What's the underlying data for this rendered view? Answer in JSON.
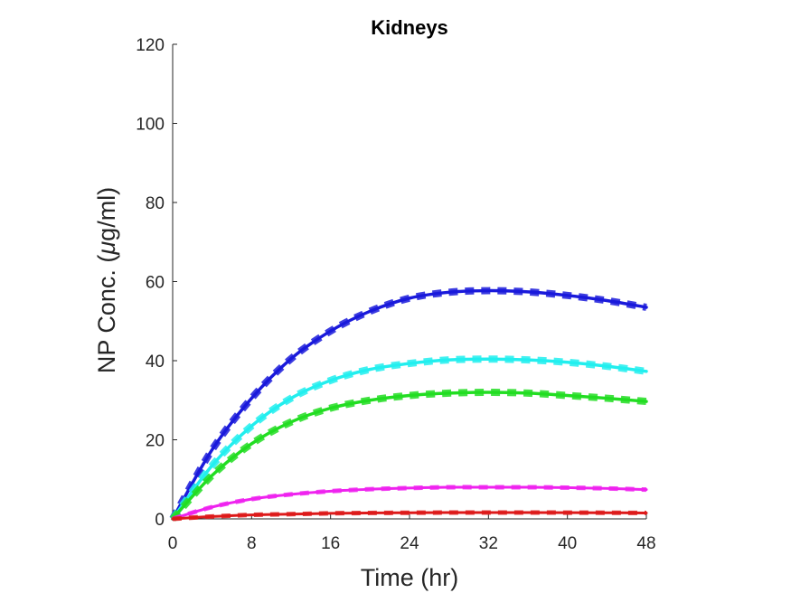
{
  "chart_data": {
    "type": "line",
    "title": "Kidneys",
    "xlabel": "Time (hr)",
    "ylabel_prefix": "NP Conc. (",
    "ylabel_mu": "μ",
    "ylabel_suffix": "g/ml)",
    "xlim": [
      0,
      48
    ],
    "ylim": [
      0,
      120
    ],
    "xticks": [
      0,
      8,
      16,
      24,
      32,
      40,
      48
    ],
    "yticks": [
      0,
      20,
      40,
      60,
      80,
      100,
      120
    ],
    "grid": false,
    "legend": null,
    "series": [
      {
        "color": "#1a1adb",
        "x": [
          0,
          4,
          8,
          12,
          16,
          20,
          24,
          28,
          32,
          36,
          40,
          44,
          48
        ],
        "y": [
          0,
          17.5,
          30.5,
          40.5,
          47.5,
          52.5,
          55.8,
          57.3,
          57.7,
          57.4,
          56.5,
          55.2,
          53.5
        ]
      },
      {
        "color": "#22eeee",
        "x": [
          0,
          4,
          8,
          12,
          16,
          20,
          24,
          28,
          32,
          36,
          40,
          44,
          48
        ],
        "y": [
          0,
          13.5,
          23.5,
          30.5,
          35,
          37.8,
          39.3,
          40.2,
          40.4,
          40.2,
          39.6,
          38.6,
          37.3
        ]
      },
      {
        "color": "#22dd22",
        "x": [
          0,
          4,
          8,
          12,
          16,
          20,
          24,
          28,
          32,
          36,
          40,
          44,
          48
        ],
        "y": [
          0,
          11,
          19,
          24.5,
          28,
          30,
          31.2,
          31.8,
          32,
          31.8,
          31.2,
          30.5,
          29.7
        ]
      },
      {
        "color": "#ee22ee",
        "x": [
          0,
          4,
          8,
          12,
          16,
          20,
          24,
          28,
          32,
          36,
          40,
          44,
          48
        ],
        "y": [
          0,
          3,
          5,
          6.2,
          7,
          7.5,
          7.8,
          8,
          8,
          8,
          7.9,
          7.7,
          7.4
        ]
      },
      {
        "color": "#dd1a1a",
        "x": [
          0,
          4,
          8,
          12,
          16,
          20,
          24,
          28,
          32,
          36,
          40,
          44,
          48
        ],
        "y": [
          0,
          0.6,
          1,
          1.2,
          1.4,
          1.5,
          1.55,
          1.6,
          1.6,
          1.6,
          1.58,
          1.55,
          1.5
        ]
      }
    ]
  }
}
